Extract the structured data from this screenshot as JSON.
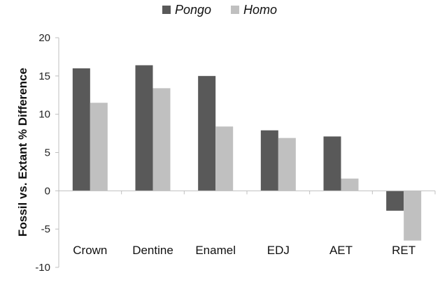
{
  "chart_data": {
    "type": "bar",
    "categories": [
      "Crown",
      "Dentine",
      "Enamel",
      "EDJ",
      "AET",
      "RET"
    ],
    "series": [
      {
        "name": "Pongo",
        "values": [
          16.0,
          16.4,
          15.0,
          7.9,
          7.1,
          -2.6
        ],
        "color": "#595959"
      },
      {
        "name": "Homo",
        "values": [
          11.5,
          13.4,
          8.4,
          6.9,
          1.6,
          -6.5
        ],
        "color": "#c0c0c0"
      }
    ],
    "title": "",
    "xlabel": "",
    "ylabel": "Fossil vs. Extant % Difference",
    "ylim": [
      -10,
      20
    ],
    "yticks": [
      20,
      15,
      10,
      5,
      0,
      -5,
      -10
    ],
    "grid": false,
    "legend": "top-center",
    "axis_color": "#bfbfbf"
  }
}
